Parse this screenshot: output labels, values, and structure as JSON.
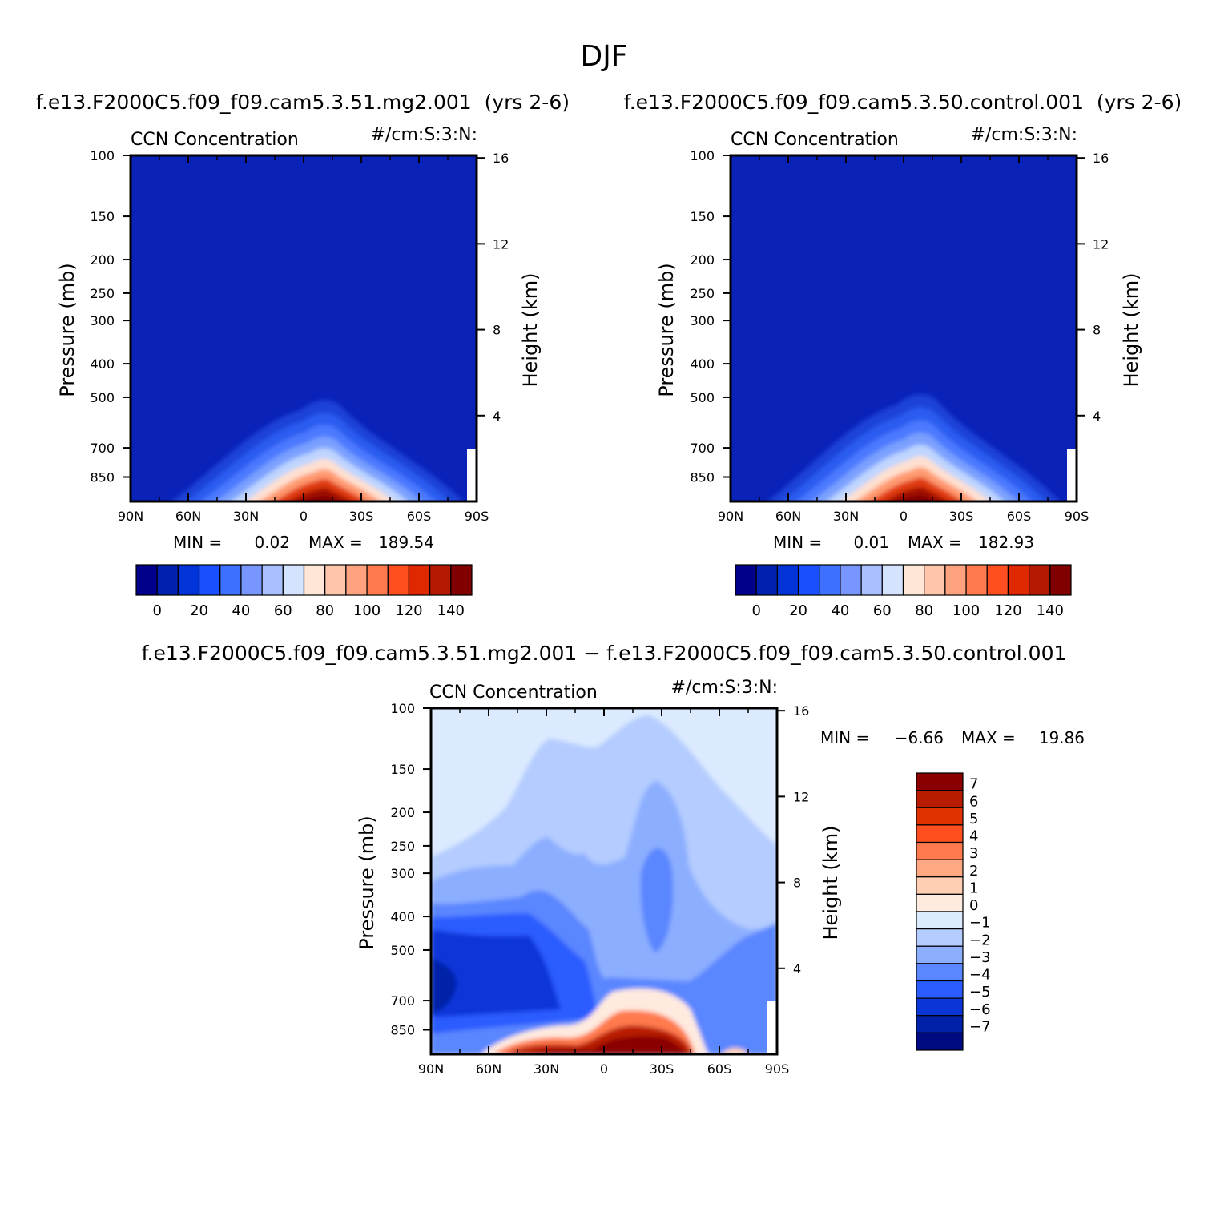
{
  "figure": {
    "title": "DJF"
  },
  "chart_data": [
    {
      "type": "heatmap",
      "panel": "top-left",
      "case_title": "f.e13.F2000C5.f09_f09.cam5.3.51.mg2.001  (yrs 2-6)",
      "variable_label": "CCN Concentration",
      "units_label": "#/cm:S:3:N:",
      "ylabel": "Pressure (mb)",
      "ylabel_right": "Height (km)",
      "x_ticks": [
        "90N",
        "60N",
        "30N",
        "0",
        "30S",
        "60S",
        "90S"
      ],
      "y_ticks": [
        100,
        150,
        200,
        250,
        300,
        400,
        500,
        700,
        850
      ],
      "y_ticks_right": [
        16,
        12,
        8,
        4
      ],
      "y_scale": "log",
      "ylim": [
        1000,
        100
      ],
      "xlim": [
        90,
        -90
      ],
      "stats": {
        "min_label": "MIN =",
        "min_value": "0.02",
        "max_label": "MAX =",
        "max_value": "189.54"
      },
      "colorbar": {
        "tick_labels": [
          "0",
          "20",
          "40",
          "60",
          "80",
          "100",
          "120",
          "140"
        ],
        "colors": [
          "#00008a",
          "#0021b0",
          "#0034d9",
          "#1a4fff",
          "#3e70ff",
          "#7896ff",
          "#a8c0ff",
          "#d4e4ff",
          "#ffe6d6",
          "#ffc6ab",
          "#ffa280",
          "#ff7a4e",
          "#ff4e1f",
          "#e02800",
          "#b51a00",
          "#800000"
        ]
      },
      "background_color": "#0a22b8",
      "plume": {
        "center_lat": -9,
        "peak_pressure": 1000,
        "top_pressure": 500,
        "levels_colors": [
          "#1b43d8",
          "#2a5cf0",
          "#4b79ff",
          "#7aa0ff",
          "#bfd5ff",
          "#ffe0d0",
          "#ff9a70",
          "#e03a10",
          "#a00a00",
          "#7a0000"
        ]
      }
    },
    {
      "type": "heatmap",
      "panel": "top-right",
      "case_title": "f.e13.F2000C5.f09_f09.cam5.3.50.control.001  (yrs 2-6)",
      "variable_label": "CCN Concentration",
      "units_label": "#/cm:S:3:N:",
      "ylabel": "Pressure (mb)",
      "ylabel_right": "Height (km)",
      "x_ticks": [
        "90N",
        "60N",
        "30N",
        "0",
        "30S",
        "60S",
        "90S"
      ],
      "y_ticks": [
        100,
        150,
        200,
        250,
        300,
        400,
        500,
        700,
        850
      ],
      "y_ticks_right": [
        16,
        12,
        8,
        4
      ],
      "y_scale": "log",
      "ylim": [
        1000,
        100
      ],
      "xlim": [
        90,
        -90
      ],
      "stats": {
        "min_label": "MIN =",
        "min_value": "0.01",
        "max_label": "MAX =",
        "max_value": "182.93"
      },
      "colorbar": {
        "tick_labels": [
          "0",
          "20",
          "40",
          "60",
          "80",
          "100",
          "120",
          "140"
        ],
        "colors": [
          "#00008a",
          "#0021b0",
          "#0034d9",
          "#1a4fff",
          "#3e70ff",
          "#7896ff",
          "#a8c0ff",
          "#d4e4ff",
          "#ffe6d6",
          "#ffc6ab",
          "#ffa280",
          "#ff7a4e",
          "#ff4e1f",
          "#e02800",
          "#b51a00",
          "#800000"
        ]
      },
      "background_color": "#0a22b8",
      "plume": {
        "center_lat": -7,
        "peak_pressure": 1000,
        "top_pressure": 480,
        "levels_colors": [
          "#1b43d8",
          "#2a5cf0",
          "#4b79ff",
          "#7aa0ff",
          "#bfd5ff",
          "#ffe0d0",
          "#ff9a70",
          "#e03a10",
          "#a00a00",
          "#7a0000"
        ]
      }
    },
    {
      "type": "heatmap",
      "panel": "bottom-difference",
      "case_title": "f.e13.F2000C5.f09_f09.cam5.3.51.mg2.001 − f.e13.F2000C5.f09_f09.cam5.3.50.control.001",
      "variable_label": "CCN Concentration",
      "units_label": "#/cm:S:3:N:",
      "ylabel": "Pressure (mb)",
      "ylabel_right": "Height (km)",
      "x_ticks": [
        "90N",
        "60N",
        "30N",
        "0",
        "30S",
        "60S",
        "90S"
      ],
      "y_ticks": [
        100,
        150,
        200,
        250,
        300,
        400,
        500,
        700,
        850
      ],
      "y_ticks_right": [
        16,
        12,
        8,
        4
      ],
      "y_scale": "log",
      "ylim": [
        1000,
        100
      ],
      "xlim": [
        90,
        -90
      ],
      "stats": {
        "min_label": "MIN =",
        "min_value": "−6.66",
        "max_label": "MAX =",
        "max_value": "19.86"
      },
      "colorbar": {
        "orientation": "vertical",
        "tick_labels": [
          "7",
          "6",
          "5",
          "4",
          "3",
          "2",
          "1",
          "0",
          "−1",
          "−2",
          "−3",
          "−4",
          "−5",
          "−6",
          "−7"
        ],
        "colors": [
          "#8a0000",
          "#b81c00",
          "#e03200",
          "#ff4e1f",
          "#ff7a4e",
          "#ffa882",
          "#ffcfb4",
          "#ffeadf",
          "#dbeaff",
          "#b4ccff",
          "#8caeff",
          "#5a86ff",
          "#2a5cff",
          "#0a36d8",
          "#0022a8",
          "#000a80"
        ]
      }
    }
  ]
}
